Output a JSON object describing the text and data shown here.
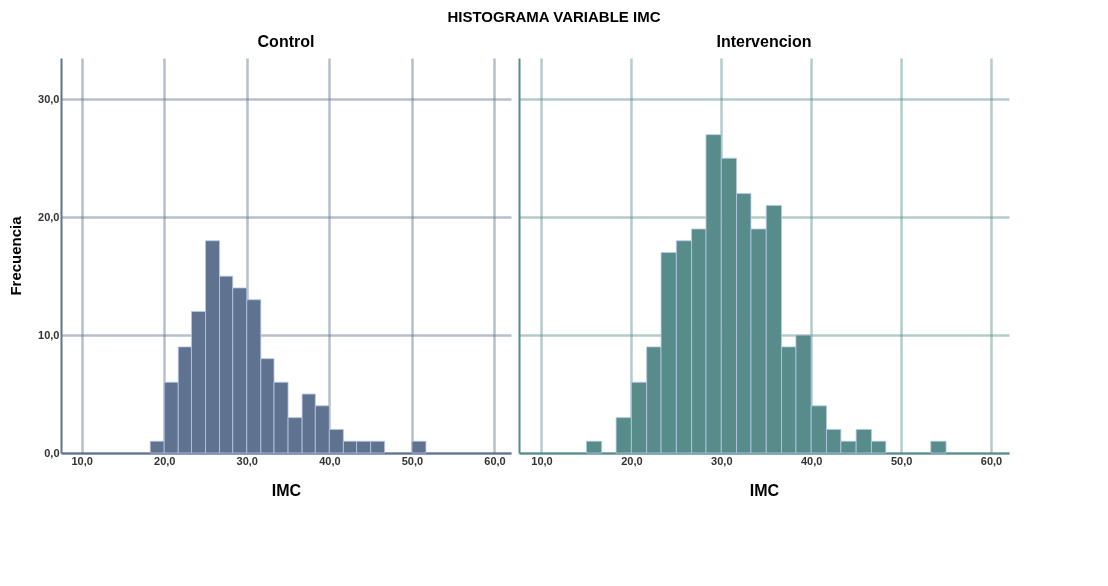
{
  "chart_data": [
    {
      "type": "histogram",
      "title": "HISTOGRAMA VARIABLE IMC",
      "subtitle": "Control",
      "xlabel": "IMC",
      "ylabel": "Frecuencia",
      "color": "#5f7290",
      "bins": [
        18.3,
        20.0,
        21.7,
        23.3,
        25.0,
        26.7,
        28.3,
        30.0,
        31.7,
        33.3,
        35.0,
        36.7,
        38.3,
        40.0,
        41.7,
        43.3,
        45.0,
        46.7,
        50.0,
        51.7
      ],
      "values": [
        1,
        6,
        9,
        12,
        18,
        15,
        14,
        13,
        8,
        6,
        3,
        5,
        4,
        2,
        1,
        1,
        1,
        0,
        1
      ],
      "xlim": [
        7.5,
        62
      ],
      "xticks": [
        {
          "value": 10,
          "label": "10,0"
        },
        {
          "value": 20,
          "label": "20,0"
        },
        {
          "value": 30,
          "label": "30,0"
        },
        {
          "value": 40,
          "label": "40,0"
        },
        {
          "value": 50,
          "label": "50,0"
        },
        {
          "value": 60,
          "label": "60,0"
        }
      ],
      "ylim": [
        0,
        33.5
      ],
      "yticks": [
        {
          "value": 0,
          "label": "0,0"
        },
        {
          "value": 10,
          "label": "10,0"
        },
        {
          "value": 20,
          "label": "20,0"
        },
        {
          "value": 30,
          "label": "30,0"
        }
      ],
      "grid": true
    },
    {
      "type": "histogram",
      "title": "Intervencion",
      "xlabel": "IMC",
      "color": "#578c8a",
      "bins": [
        15.0,
        16.7,
        18.3,
        20.0,
        21.7,
        23.3,
        25.0,
        26.7,
        28.3,
        30.0,
        31.7,
        33.3,
        35.0,
        36.7,
        38.3,
        40.0,
        41.7,
        43.3,
        45.0,
        46.7,
        48.3,
        53.3,
        55.0
      ],
      "values": [
        1,
        0,
        3,
        6,
        9,
        17,
        18,
        19,
        27,
        25,
        22,
        19,
        21,
        9,
        10,
        4,
        2,
        1,
        2,
        1,
        0,
        1
      ],
      "xlim": [
        7.5,
        62
      ],
      "xticks": [
        {
          "value": 10,
          "label": "10,0"
        },
        {
          "value": 20,
          "label": "20,0"
        },
        {
          "value": 30,
          "label": "30,0"
        },
        {
          "value": 40,
          "label": "40,0"
        },
        {
          "value": 50,
          "label": "50,0"
        },
        {
          "value": 60,
          "label": "60,0"
        }
      ],
      "ylim": [
        0,
        33.5
      ],
      "yticks": [
        0,
        10,
        20,
        30
      ],
      "grid": true,
      "tick_labels": "x"
    }
  ]
}
